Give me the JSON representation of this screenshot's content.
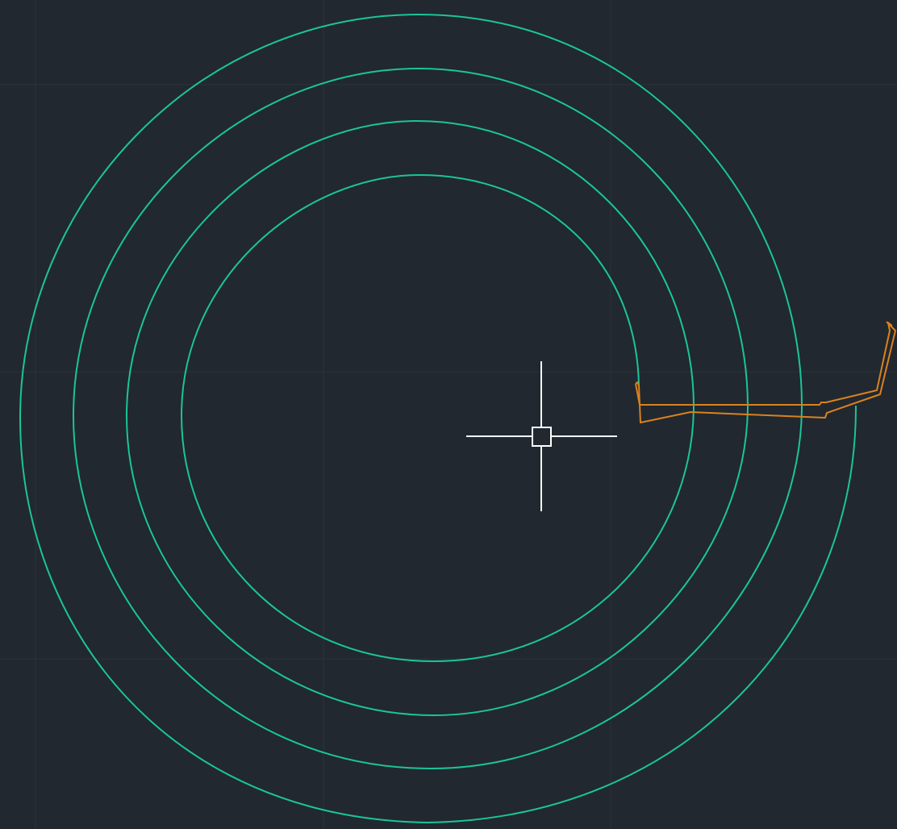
{
  "app": {
    "view": "drawing-canvas",
    "theme": "dark"
  },
  "canvas": {
    "background_color": "#212830",
    "grid": {
      "enabled": true,
      "color": "#2a323c"
    }
  },
  "drawing": {
    "spiral": {
      "color": "#1bc49a",
      "turns": 4
    },
    "profile_polyline": {
      "color": "#d9821d"
    }
  },
  "cursor": {
    "type": "crosshair-pickbox",
    "color": "#ffffff",
    "icon": "crosshair-icon"
  }
}
